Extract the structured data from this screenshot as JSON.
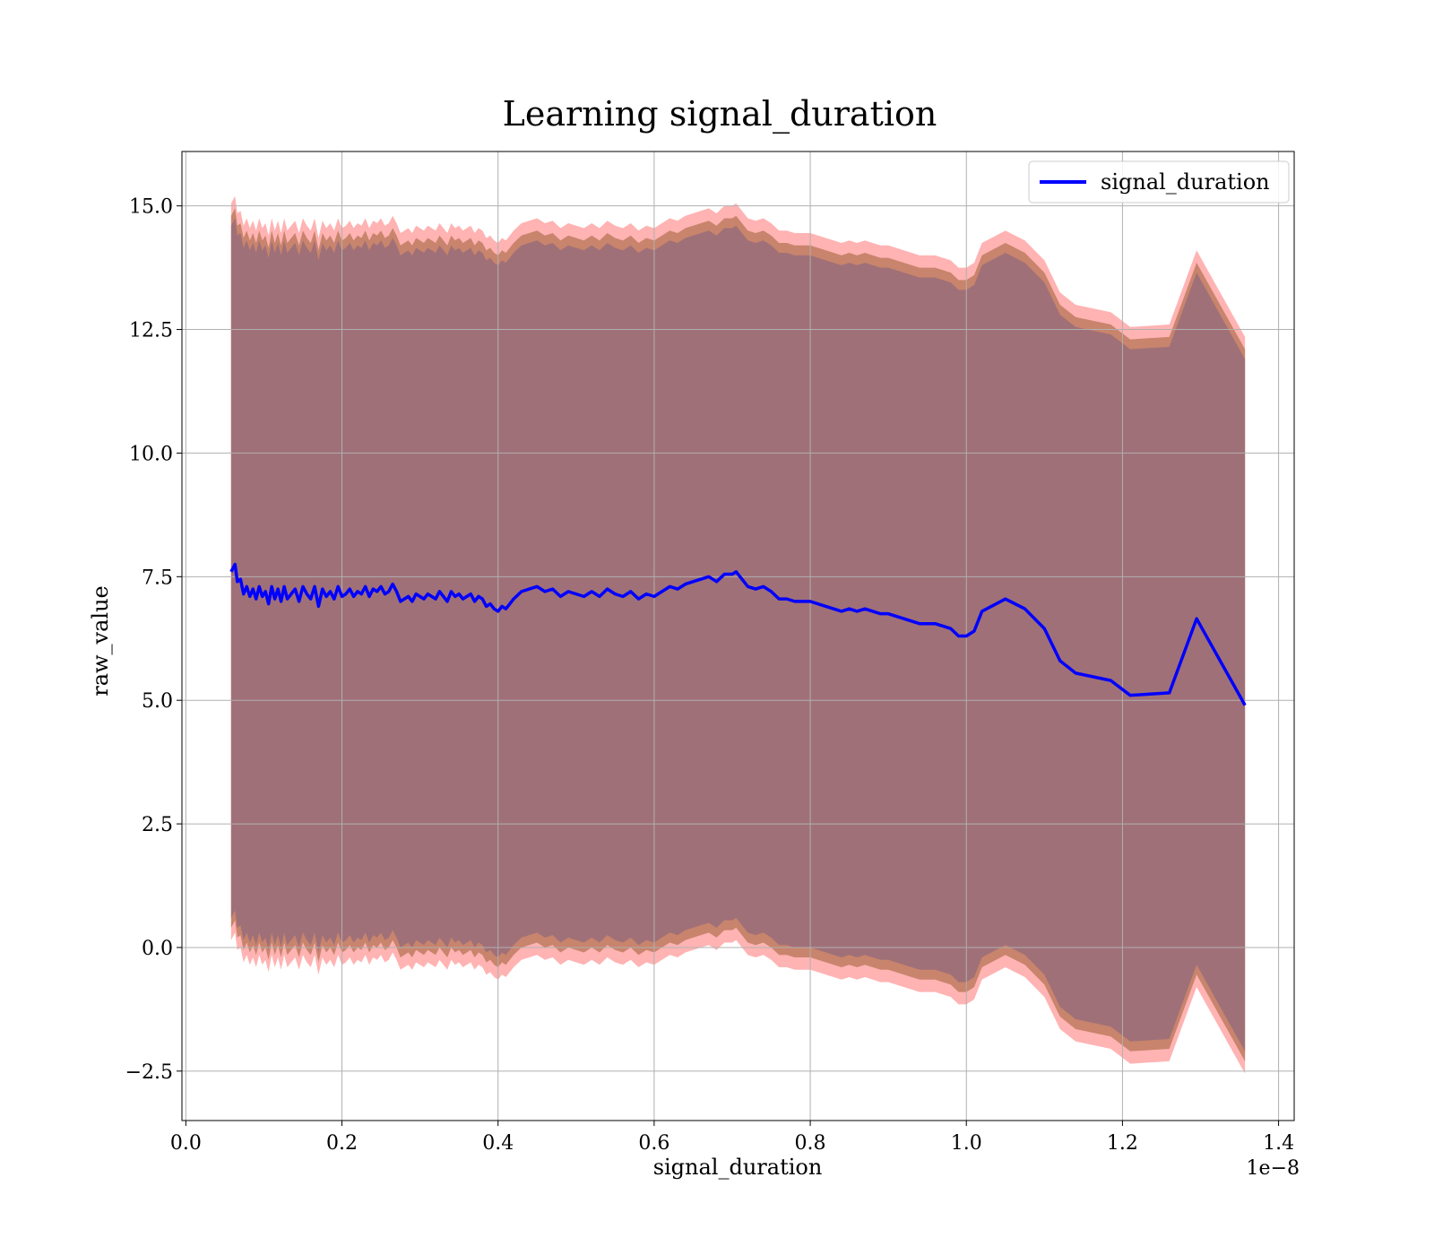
{
  "chart_data": {
    "type": "line",
    "title": "Learning signal_duration",
    "xlabel": "signal_duration",
    "ylabel": "raw_value",
    "x_offset_label": "1e−8",
    "xlim": [
      -0.005,
      1.42
    ],
    "ylim": [
      -3.5,
      16.1
    ],
    "x_ticks": [
      0.0,
      0.2,
      0.4,
      0.6,
      0.8,
      1.0,
      1.2,
      1.4
    ],
    "x_tick_labels": [
      "0.0",
      "0.2",
      "0.4",
      "0.6",
      "0.8",
      "1.0",
      "1.2",
      "1.4"
    ],
    "y_ticks": [
      -2.5,
      0.0,
      2.5,
      5.0,
      7.5,
      10.0,
      12.5,
      15.0
    ],
    "y_tick_labels": [
      "−2.5",
      "0.0",
      "2.5",
      "5.0",
      "7.5",
      "10.0",
      "12.5",
      "15.0"
    ],
    "grid": true,
    "legend_position": "top-right",
    "colors": {
      "line": "#0000ff",
      "band_outer": "#ff9999",
      "band_middle": "#c8846c",
      "band_inner": "#a07078"
    },
    "band_spreads": {
      "outer": 7.45,
      "middle": 7.2,
      "inner": 7.0
    },
    "series": [
      {
        "name": "signal_duration",
        "x": [
          0.058,
          0.063,
          0.066,
          0.07,
          0.074,
          0.078,
          0.082,
          0.086,
          0.09,
          0.094,
          0.098,
          0.102,
          0.106,
          0.11,
          0.114,
          0.118,
          0.122,
          0.126,
          0.13,
          0.135,
          0.14,
          0.145,
          0.15,
          0.155,
          0.16,
          0.165,
          0.17,
          0.175,
          0.18,
          0.185,
          0.19,
          0.195,
          0.2,
          0.205,
          0.21,
          0.215,
          0.22,
          0.225,
          0.23,
          0.235,
          0.24,
          0.245,
          0.25,
          0.255,
          0.26,
          0.265,
          0.27,
          0.275,
          0.28,
          0.285,
          0.29,
          0.295,
          0.3,
          0.305,
          0.31,
          0.315,
          0.32,
          0.325,
          0.33,
          0.335,
          0.34,
          0.345,
          0.35,
          0.355,
          0.36,
          0.365,
          0.37,
          0.375,
          0.38,
          0.385,
          0.39,
          0.395,
          0.4,
          0.405,
          0.41,
          0.415,
          0.42,
          0.43,
          0.44,
          0.45,
          0.46,
          0.47,
          0.48,
          0.49,
          0.5,
          0.51,
          0.52,
          0.53,
          0.54,
          0.55,
          0.56,
          0.57,
          0.58,
          0.59,
          0.6,
          0.61,
          0.62,
          0.63,
          0.64,
          0.65,
          0.66,
          0.67,
          0.68,
          0.69,
          0.7,
          0.705,
          0.71,
          0.72,
          0.73,
          0.74,
          0.75,
          0.76,
          0.77,
          0.78,
          0.79,
          0.8,
          0.81,
          0.82,
          0.83,
          0.84,
          0.85,
          0.86,
          0.87,
          0.88,
          0.89,
          0.9,
          0.91,
          0.92,
          0.93,
          0.94,
          0.95,
          0.96,
          0.97,
          0.98,
          0.99,
          1.0,
          1.01,
          1.02,
          1.05,
          1.075,
          1.1,
          1.12,
          1.14,
          1.185,
          1.21,
          1.26,
          1.295,
          1.357
        ],
        "y": [
          7.6,
          7.75,
          7.4,
          7.45,
          7.15,
          7.3,
          7.1,
          7.25,
          7.05,
          7.3,
          7.1,
          7.2,
          6.95,
          7.3,
          7.05,
          7.25,
          7.0,
          7.3,
          7.05,
          7.15,
          7.25,
          7.0,
          7.3,
          7.15,
          7.05,
          7.3,
          6.9,
          7.25,
          7.1,
          7.2,
          7.05,
          7.3,
          7.1,
          7.15,
          7.25,
          7.1,
          7.2,
          7.15,
          7.3,
          7.1,
          7.25,
          7.2,
          7.3,
          7.15,
          7.2,
          7.35,
          7.2,
          7.0,
          7.05,
          7.1,
          7.0,
          7.15,
          7.1,
          7.05,
          7.15,
          7.1,
          7.05,
          7.2,
          7.1,
          7.0,
          7.2,
          7.1,
          7.15,
          7.05,
          7.1,
          7.15,
          7.0,
          7.1,
          7.05,
          6.9,
          6.95,
          6.85,
          6.8,
          6.9,
          6.85,
          6.95,
          7.05,
          7.2,
          7.25,
          7.3,
          7.2,
          7.25,
          7.1,
          7.2,
          7.15,
          7.1,
          7.2,
          7.1,
          7.25,
          7.15,
          7.1,
          7.2,
          7.05,
          7.15,
          7.1,
          7.2,
          7.3,
          7.25,
          7.35,
          7.4,
          7.45,
          7.5,
          7.4,
          7.55,
          7.55,
          7.6,
          7.5,
          7.3,
          7.25,
          7.3,
          7.2,
          7.05,
          7.05,
          7.0,
          7.0,
          7.0,
          6.95,
          6.9,
          6.85,
          6.8,
          6.85,
          6.8,
          6.85,
          6.8,
          6.75,
          6.75,
          6.7,
          6.65,
          6.6,
          6.55,
          6.55,
          6.55,
          6.5,
          6.45,
          6.3,
          6.3,
          6.4,
          6.8,
          7.05,
          6.85,
          6.45,
          5.8,
          5.55,
          5.4,
          5.1,
          5.15,
          6.65,
          4.9
        ]
      }
    ]
  }
}
